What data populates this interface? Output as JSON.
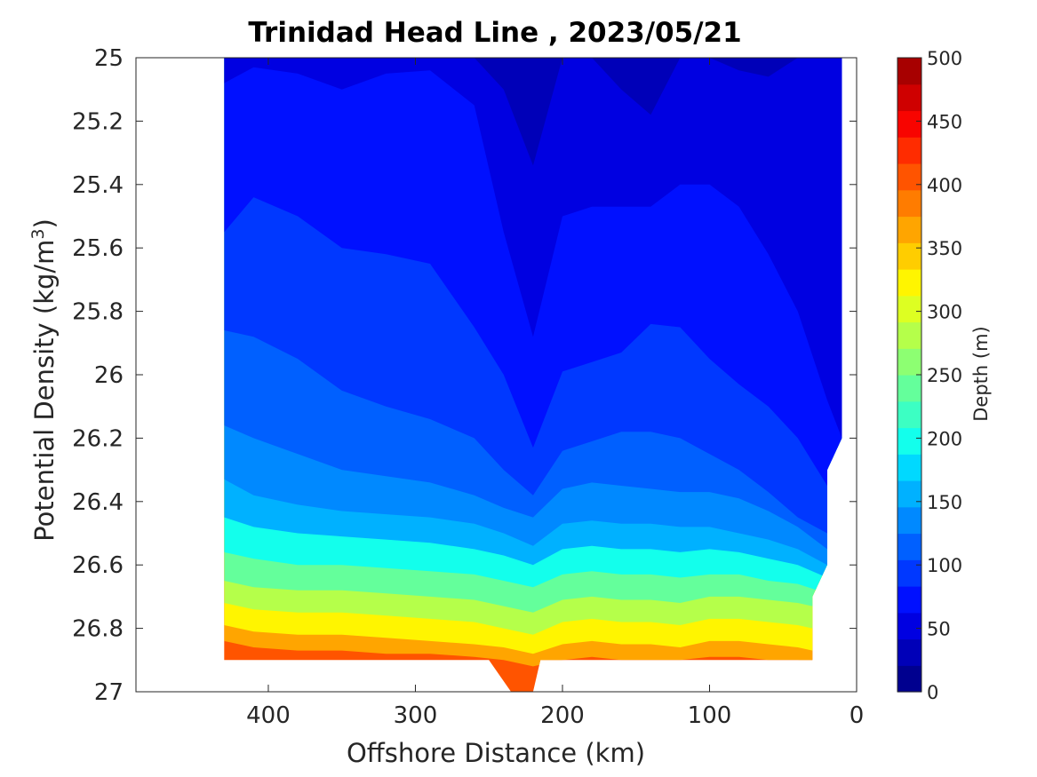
{
  "chart_data": {
    "type": "contour",
    "title": "Trinidad Head Line , 2023/05/21",
    "xlabel": "Offshore Distance (km)",
    "ylabel_main": "Potential Density (kg/m",
    "ylabel_sup": "3",
    "ylabel_close": ")",
    "xlim": [
      490,
      0
    ],
    "ylim": [
      25,
      27
    ],
    "x_reversed": true,
    "y_reversed": true,
    "xticks": [
      400,
      300,
      200,
      100,
      0
    ],
    "xtick_labels": [
      "400",
      "300",
      "200",
      "100",
      "0"
    ],
    "yticks": [
      25,
      25.2,
      25.4,
      25.6,
      25.8,
      26,
      26.2,
      26.4,
      26.6,
      26.8,
      27
    ],
    "ytick_labels": [
      "25",
      "25.2",
      "25.4",
      "25.6",
      "25.8",
      "26",
      "26.2",
      "26.4",
      "26.6",
      "26.8",
      "27"
    ],
    "colorbar": {
      "label": "Depth (m)",
      "range": [
        0,
        500
      ],
      "step": 25,
      "ticks": [
        0,
        50,
        100,
        150,
        200,
        250,
        300,
        350,
        400,
        450,
        500
      ],
      "tick_labels": [
        "0",
        "50",
        "100",
        "150",
        "200",
        "250",
        "300",
        "350",
        "400",
        "450",
        "500"
      ],
      "colors": [
        "#00008f",
        "#0000b8",
        "#0000e1",
        "#0010ff",
        "#0038ff",
        "#0060ff",
        "#0089ff",
        "#00b1ff",
        "#00d9ff",
        "#13ffec",
        "#3cffc3",
        "#64ff9b",
        "#8dff72",
        "#b5ff4a",
        "#ddff22",
        "#fff500",
        "#ffcd00",
        "#ffa500",
        "#ff7c00",
        "#ff5400",
        "#ff2c00",
        "#f80400",
        "#cf0000",
        "#a70000"
      ]
    },
    "depth_contours": [
      {
        "level": 25,
        "x": [
          430,
          410,
          380,
          350,
          320,
          290,
          260,
          240,
          220,
          200,
          180,
          160,
          140,
          120,
          100,
          80,
          60,
          40,
          20,
          10
        ],
        "y": [
          25.0,
          25.0,
          25.0,
          25.0,
          25.0,
          25.0,
          25.0,
          25.0,
          25.0,
          25.0,
          25.0,
          25.0,
          25.0,
          25.0,
          25.0,
          25.0,
          25.0,
          25.0,
          25.0,
          25.0
        ]
      },
      {
        "level": 50,
        "x": [
          430,
          410,
          380,
          350,
          320,
          290,
          260,
          240,
          220,
          200,
          180,
          160,
          140,
          120,
          100,
          80,
          60,
          40,
          20,
          10
        ],
        "y": [
          25.0,
          25.0,
          25.0,
          25.0,
          25.0,
          25.0,
          25.0,
          25.1,
          25.34,
          25.0,
          25.0,
          25.1,
          25.18,
          25.0,
          25.0,
          25.04,
          25.06,
          25.0,
          25.0,
          25.0
        ]
      },
      {
        "level": 75,
        "x": [
          430,
          410,
          380,
          350,
          320,
          290,
          260,
          240,
          220,
          200,
          180,
          160,
          140,
          120,
          100,
          80,
          60,
          40,
          20,
          10
        ],
        "y": [
          25.08,
          25.03,
          25.05,
          25.1,
          25.05,
          25.04,
          25.15,
          25.55,
          25.88,
          25.5,
          25.47,
          25.47,
          25.47,
          25.4,
          25.4,
          25.47,
          25.62,
          25.8,
          26.08,
          26.2
        ]
      },
      {
        "level": 100,
        "x": [
          430,
          410,
          380,
          350,
          320,
          290,
          260,
          240,
          220,
          200,
          180,
          160,
          140,
          120,
          100,
          80,
          60,
          40,
          20,
          10
        ],
        "y": [
          25.55,
          25.44,
          25.5,
          25.6,
          25.62,
          25.65,
          25.85,
          26.0,
          26.23,
          25.99,
          25.96,
          25.93,
          25.84,
          25.85,
          25.95,
          26.03,
          26.1,
          26.2,
          26.35,
          26.4
        ]
      },
      {
        "level": 125,
        "x": [
          430,
          410,
          380,
          350,
          320,
          290,
          260,
          240,
          220,
          200,
          180,
          160,
          140,
          120,
          100,
          80,
          60,
          40,
          20,
          10
        ],
        "y": [
          25.86,
          25.88,
          25.95,
          26.05,
          26.1,
          26.14,
          26.2,
          26.3,
          26.38,
          26.24,
          26.21,
          26.18,
          26.18,
          26.2,
          26.25,
          26.3,
          26.37,
          26.45,
          26.5,
          26.55
        ]
      },
      {
        "level": 150,
        "x": [
          430,
          410,
          380,
          350,
          320,
          290,
          260,
          240,
          220,
          200,
          180,
          160,
          140,
          120,
          100,
          80,
          60,
          40,
          20,
          10
        ],
        "y": [
          26.16,
          26.2,
          26.25,
          26.3,
          26.32,
          26.34,
          26.38,
          26.42,
          26.45,
          26.36,
          26.34,
          26.35,
          26.36,
          26.37,
          26.37,
          26.39,
          26.43,
          26.48,
          26.55,
          26.58
        ]
      },
      {
        "level": 175,
        "x": [
          430,
          410,
          380,
          350,
          320,
          290,
          260,
          240,
          220,
          200,
          180,
          160,
          140,
          120,
          100,
          80,
          60,
          40,
          20,
          10
        ],
        "y": [
          26.33,
          26.38,
          26.41,
          26.43,
          26.44,
          26.45,
          26.47,
          26.5,
          26.54,
          26.47,
          26.46,
          26.47,
          26.47,
          26.48,
          26.48,
          26.5,
          26.52,
          26.55,
          26.6,
          26.62
        ]
      },
      {
        "level": 200,
        "x": [
          430,
          410,
          380,
          350,
          320,
          290,
          260,
          240,
          220,
          200,
          180,
          160,
          140,
          120,
          100,
          80,
          60,
          40,
          20,
          10
        ],
        "y": [
          26.45,
          26.48,
          26.5,
          26.51,
          26.52,
          26.53,
          26.55,
          26.57,
          26.6,
          26.55,
          26.54,
          26.55,
          26.55,
          26.56,
          26.55,
          26.56,
          26.58,
          26.6,
          26.64,
          26.66
        ]
      },
      {
        "level": 250,
        "x": [
          430,
          410,
          380,
          350,
          320,
          290,
          260,
          240,
          220,
          200,
          180,
          160,
          140,
          120,
          100,
          80,
          60,
          40,
          20,
          10
        ],
        "y": [
          26.56,
          26.58,
          26.6,
          26.6,
          26.61,
          26.62,
          26.63,
          26.65,
          26.67,
          26.63,
          26.62,
          26.63,
          26.63,
          26.64,
          26.63,
          26.63,
          26.65,
          26.66,
          26.69,
          26.7
        ]
      },
      {
        "level": 300,
        "x": [
          430,
          410,
          380,
          350,
          320,
          290,
          260,
          240,
          220,
          200,
          180,
          160,
          140,
          120,
          100,
          80,
          60,
          40,
          20,
          10
        ],
        "y": [
          26.65,
          26.67,
          26.68,
          26.68,
          26.69,
          26.7,
          26.71,
          26.73,
          26.75,
          26.71,
          26.7,
          26.71,
          26.71,
          26.72,
          26.7,
          26.7,
          26.71,
          26.72,
          26.74,
          26.75
        ]
      },
      {
        "level": 350,
        "x": [
          430,
          410,
          380,
          350,
          320,
          290,
          260,
          240,
          220,
          200,
          180,
          160,
          140,
          120,
          100,
          80,
          60,
          40,
          20,
          10
        ],
        "y": [
          26.72,
          26.74,
          26.75,
          26.75,
          26.76,
          26.77,
          26.78,
          26.8,
          26.82,
          26.78,
          26.77,
          26.78,
          26.78,
          26.79,
          26.77,
          26.77,
          26.78,
          26.79,
          26.81,
          26.82
        ]
      },
      {
        "level": 400,
        "x": [
          430,
          410,
          380,
          350,
          320,
          290,
          260,
          240,
          220,
          200,
          180,
          160,
          140,
          120,
          100,
          80,
          60,
          40,
          20,
          10
        ],
        "y": [
          26.79,
          26.81,
          26.82,
          26.82,
          26.83,
          26.84,
          26.85,
          26.86,
          26.88,
          26.85,
          26.84,
          26.85,
          26.85,
          26.86,
          26.84,
          26.84,
          26.85,
          26.86,
          26.88,
          26.89
        ]
      },
      {
        "level": 450,
        "x": [
          430,
          410,
          380,
          350,
          320,
          290,
          260,
          240,
          220,
          200,
          180,
          160,
          140,
          120,
          100,
          80,
          60,
          40,
          20,
          10
        ],
        "y": [
          26.84,
          26.86,
          26.87,
          26.87,
          26.88,
          26.88,
          26.89,
          26.9,
          26.92,
          26.9,
          26.89,
          26.9,
          26.9,
          26.9,
          26.89,
          26.89,
          26.9,
          26.9,
          26.91,
          26.92
        ]
      }
    ],
    "data_extent": {
      "bottom_depth_m": 500,
      "boundary_x": [
        430,
        10,
        10,
        20,
        20,
        30,
        30,
        215,
        220,
        235,
        250,
        430
      ],
      "boundary_y": [
        25.0,
        25.0,
        26.2,
        26.3,
        26.6,
        26.7,
        26.9,
        26.9,
        27.0,
        27.0,
        26.9,
        26.9
      ]
    }
  }
}
